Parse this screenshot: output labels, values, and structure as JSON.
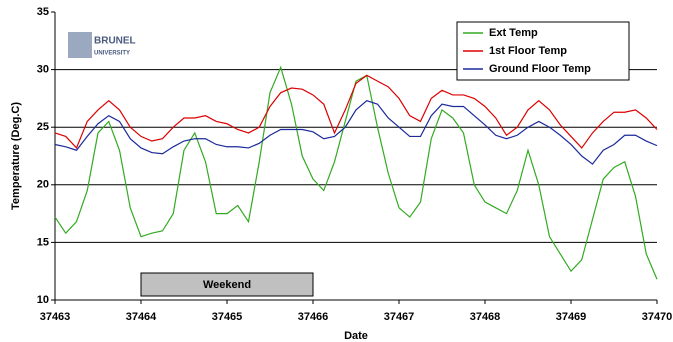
{
  "chart_data": {
    "type": "line",
    "xlabel": "Date",
    "ylabel": "Temperature (Deg.C)",
    "logo_text": [
      "BRUNEL",
      "UNIVERSITY"
    ],
    "annotation": {
      "text": "Weekend",
      "x_span": [
        37464,
        37466
      ]
    },
    "x": [
      37463,
      37463.125,
      37463.25,
      37463.375,
      37463.5,
      37463.625,
      37463.75,
      37463.875,
      37464,
      37464.125,
      37464.25,
      37464.375,
      37464.5,
      37464.625,
      37464.75,
      37464.875,
      37465,
      37465.125,
      37465.25,
      37465.375,
      37465.5,
      37465.625,
      37465.75,
      37465.875,
      37466,
      37466.125,
      37466.25,
      37466.375,
      37466.5,
      37466.625,
      37466.75,
      37466.875,
      37467,
      37467.125,
      37467.25,
      37467.375,
      37467.5,
      37467.625,
      37467.75,
      37467.875,
      37468,
      37468.125,
      37468.25,
      37468.375,
      37468.5,
      37468.625,
      37468.75,
      37468.875,
      37469,
      37469.125,
      37469.25,
      37469.375,
      37469.5,
      37469.625,
      37469.75,
      37469.875,
      37470
    ],
    "series": [
      {
        "name": "Ext Temp",
        "color": "#33aa22",
        "values": [
          17.2,
          15.8,
          16.8,
          19.5,
          24.5,
          25.5,
          23,
          18,
          15.5,
          15.8,
          16,
          17.5,
          23,
          24.5,
          22,
          17.5,
          17.5,
          18.2,
          16.8,
          22,
          28,
          30.2,
          27,
          22.5,
          20.5,
          19.5,
          22,
          25.5,
          29,
          29.5,
          25,
          21,
          18,
          17.2,
          18.5,
          24,
          26.5,
          25.8,
          24.5,
          20,
          18.5,
          18,
          17.5,
          19.5,
          23,
          20,
          15.5,
          14,
          12.5,
          13.5,
          17,
          20.5,
          21.5,
          22,
          19,
          14,
          11.8
        ]
      },
      {
        "name": "1st Floor Temp",
        "color": "#dd0000",
        "values": [
          24.5,
          24.2,
          23.2,
          25.5,
          26.5,
          27.3,
          26.5,
          25,
          24.2,
          23.8,
          24,
          25,
          25.8,
          25.8,
          26,
          25.5,
          25.3,
          24.8,
          24.5,
          25,
          26.8,
          28,
          28.4,
          28.3,
          27.8,
          27,
          24.5,
          26.5,
          28.8,
          29.5,
          29,
          28.5,
          27.5,
          26,
          25.5,
          27.5,
          28.2,
          27.8,
          27.8,
          27.5,
          26.8,
          25.8,
          24.3,
          25,
          26.5,
          27.3,
          26.5,
          25.2,
          24.2,
          23.2,
          24.5,
          25.5,
          26.3,
          26.3,
          26.5,
          25.8,
          24.8
        ]
      },
      {
        "name": "Ground Floor Temp",
        "color": "#1a2a99",
        "values": [
          23.5,
          23.3,
          23,
          24.2,
          25.3,
          26,
          25.5,
          24,
          23.2,
          22.8,
          22.7,
          23.3,
          23.8,
          24,
          24,
          23.5,
          23.3,
          23.3,
          23.2,
          23.6,
          24.3,
          24.8,
          24.8,
          24.8,
          24.6,
          24,
          24.2,
          25,
          26.5,
          27.3,
          27,
          25.8,
          25,
          24.2,
          24.2,
          26,
          27,
          26.8,
          26.8,
          26,
          25.2,
          24.3,
          24,
          24.3,
          25,
          25.5,
          25,
          24.3,
          23.5,
          22.5,
          21.8,
          23,
          23.5,
          24.3,
          24.3,
          23.8,
          23.4
        ]
      }
    ],
    "xlim": [
      37463,
      37470
    ],
    "xticks": [
      37463,
      37464,
      37465,
      37466,
      37467,
      37468,
      37469,
      37470
    ],
    "ylim": [
      10,
      35
    ],
    "yticks": [
      10,
      15,
      20,
      25,
      30,
      35
    ],
    "grid": true,
    "legend": "top-right"
  }
}
